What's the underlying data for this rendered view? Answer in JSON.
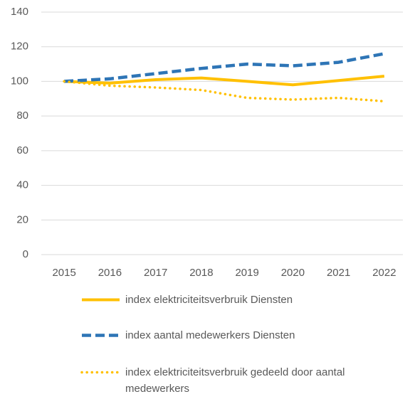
{
  "chart_data": {
    "type": "line",
    "categories": [
      "2015",
      "2016",
      "2017",
      "2018",
      "2019",
      "2020",
      "2021",
      "2022"
    ],
    "series": [
      {
        "name": "index elektriciteitsverbruik Diensten",
        "color": "#FFC000",
        "dash": "solid",
        "values": [
          100,
          99,
          101,
          102,
          100,
          98,
          100.5,
          103
        ]
      },
      {
        "name": "index aantal medewerkers Diensten",
        "color": "#2E75B6",
        "dash": "dashed",
        "values": [
          100,
          101.5,
          104.5,
          107.5,
          110,
          109,
          111,
          116
        ]
      },
      {
        "name": "index elektriciteitsverbruik gedeeld door aantal medewerkers",
        "color": "#FFC000",
        "dash": "dotted",
        "values": [
          100,
          97.5,
          96.5,
          95,
          90.5,
          89.5,
          90.5,
          88.5
        ]
      }
    ],
    "ylim": [
      0,
      140
    ],
    "yticks": [
      0,
      20,
      40,
      60,
      80,
      100,
      120,
      140
    ],
    "grid": true,
    "legend": "bottom"
  }
}
